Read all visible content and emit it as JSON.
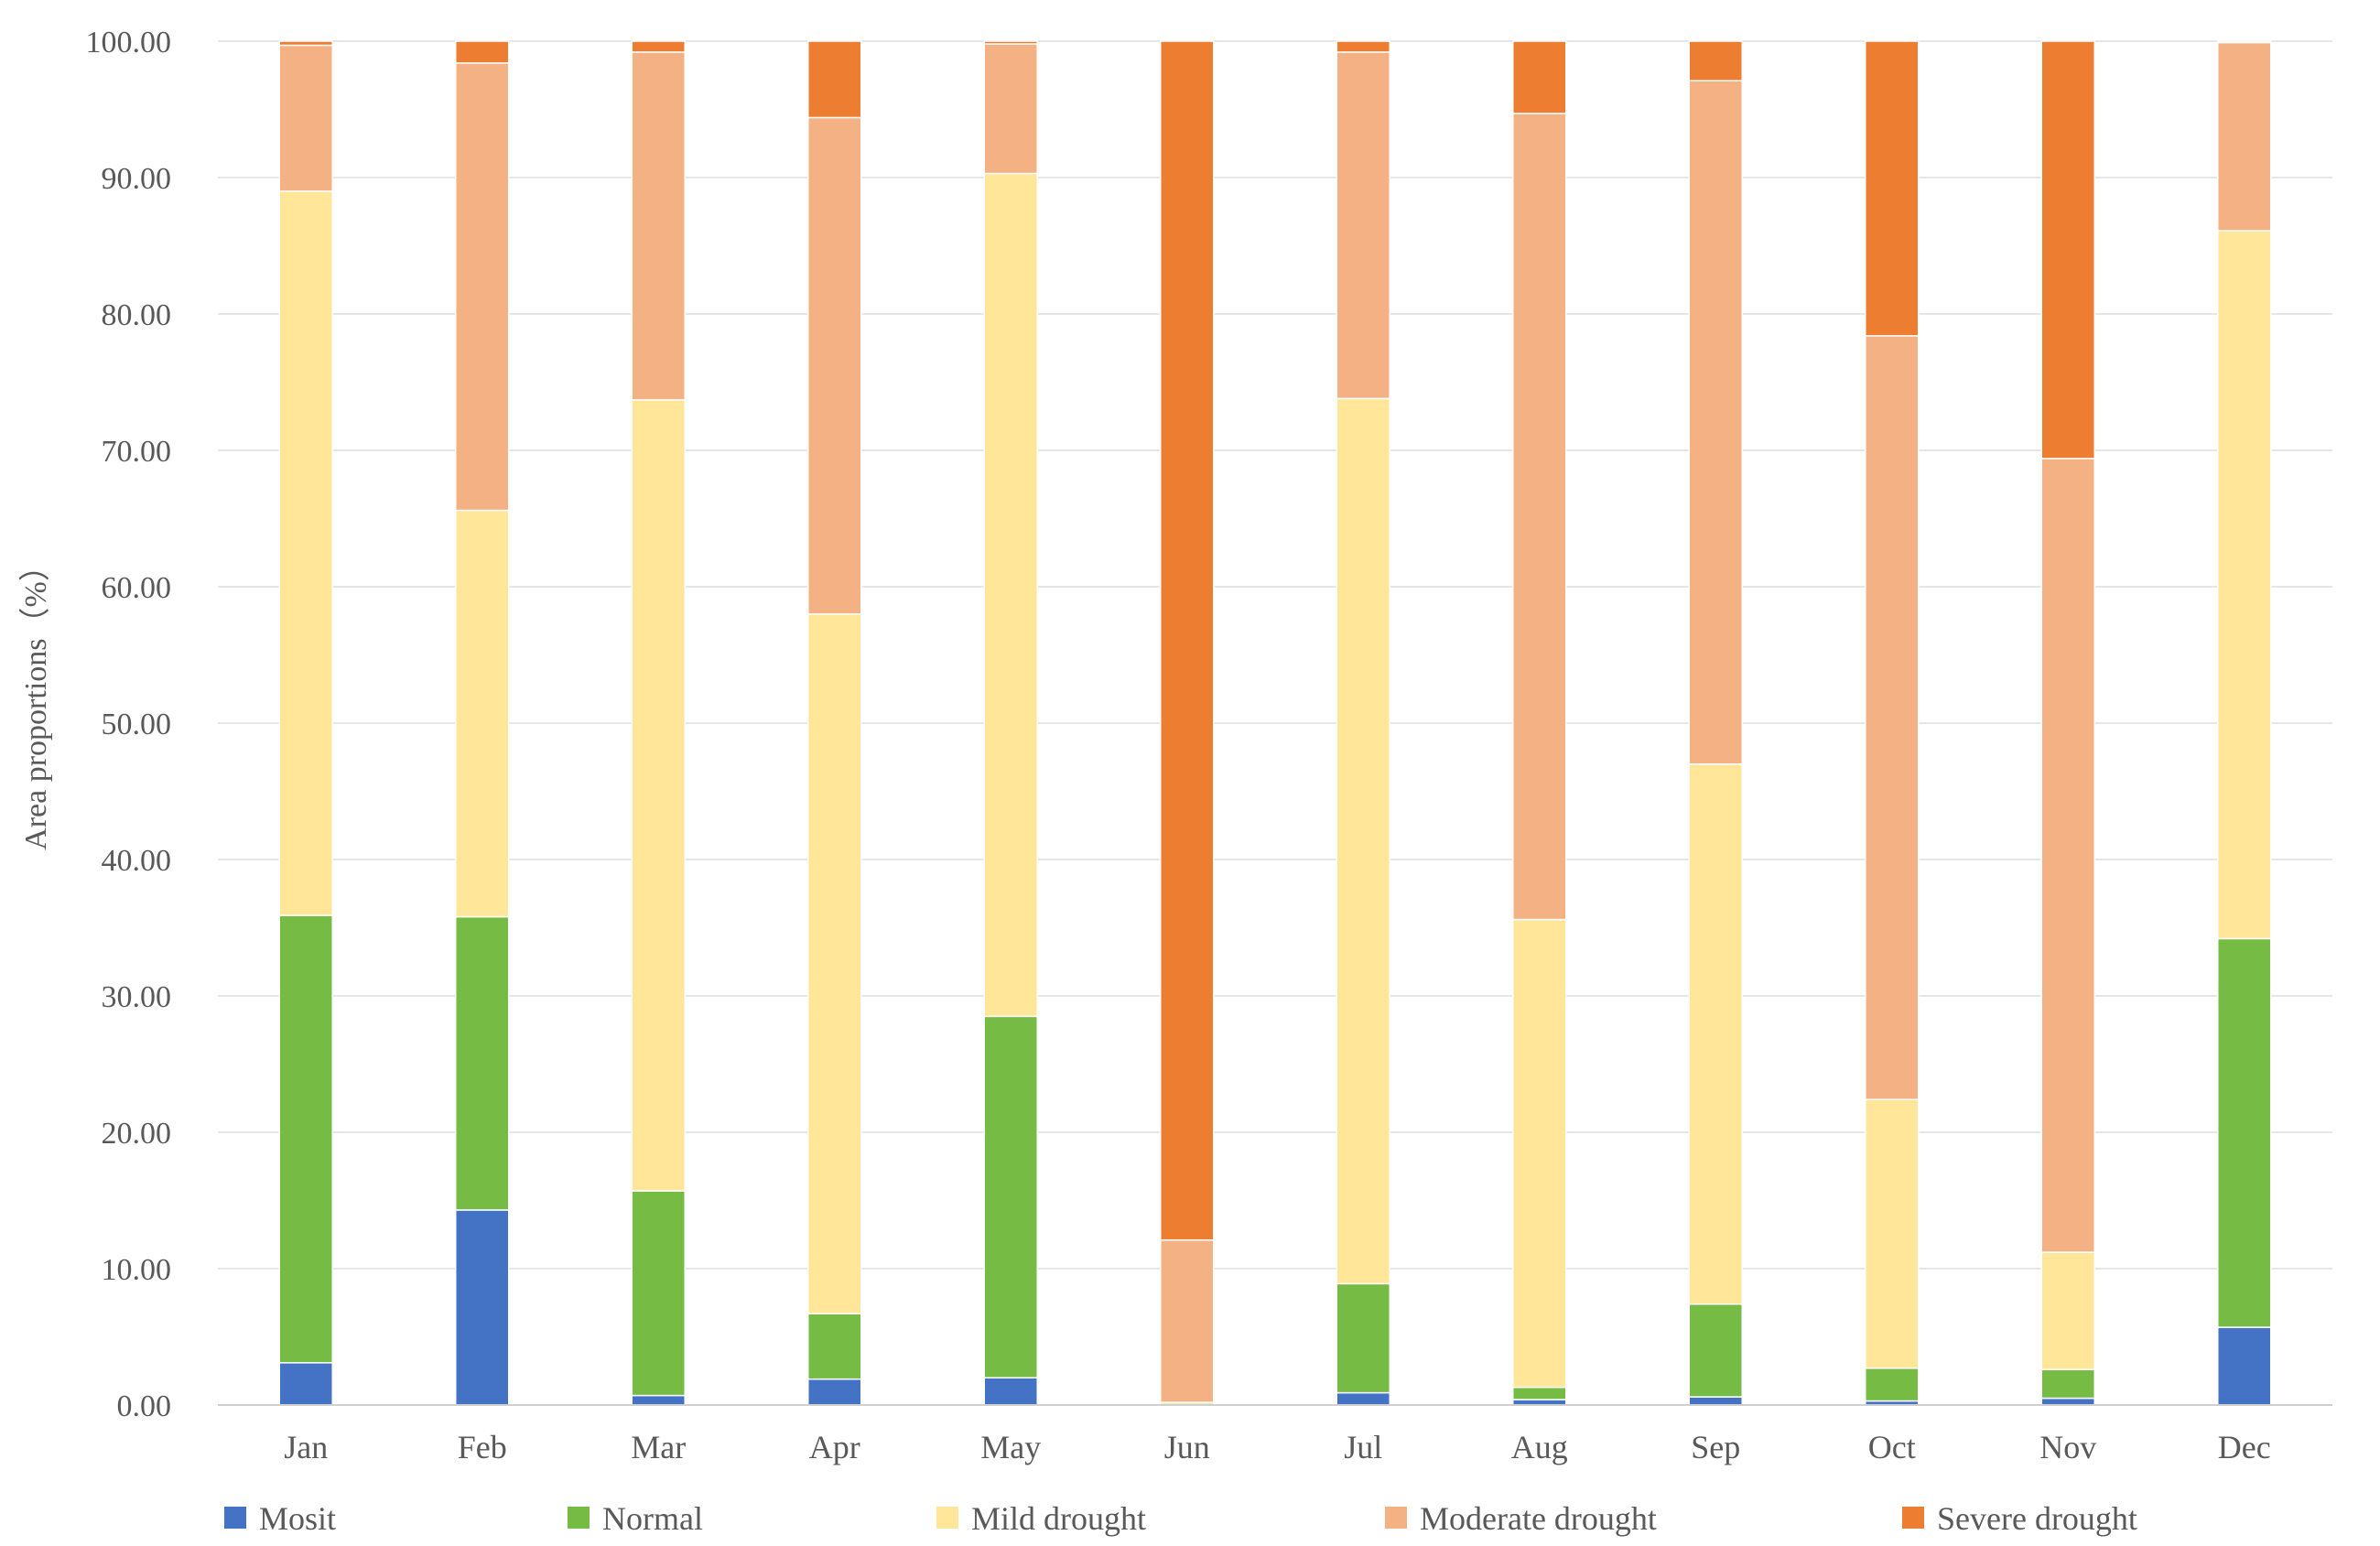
{
  "chart_data": {
    "type": "bar",
    "stacked": true,
    "ylabel": "Area proportions（%）",
    "xlabel": "",
    "ylim": [
      0,
      100
    ],
    "yticks": [
      "0.00",
      "10.00",
      "20.00",
      "30.00",
      "40.00",
      "50.00",
      "60.00",
      "70.00",
      "80.00",
      "90.00",
      "100.00"
    ],
    "grid": true,
    "legend_position": "bottom",
    "categories": [
      "Jan",
      "Feb",
      "Mar",
      "Apr",
      "May",
      "Jun",
      "Jul",
      "Aug",
      "Sep",
      "Oct",
      "Nov",
      "Dec"
    ],
    "series": [
      {
        "name": "Mosit",
        "color": "#4472C4",
        "values": [
          3.1,
          14.3,
          0.7,
          1.9,
          2.0,
          0.0,
          0.9,
          0.4,
          0.6,
          0.3,
          0.5,
          5.7
        ]
      },
      {
        "name": "Normal",
        "color": "#76BC44",
        "values": [
          32.8,
          21.5,
          15.0,
          4.8,
          26.5,
          0.0,
          8.0,
          0.9,
          6.8,
          2.4,
          2.1,
          28.5
        ]
      },
      {
        "name": "Mild drought",
        "color": "#FFE699",
        "values": [
          53.1,
          29.8,
          58.0,
          51.3,
          61.8,
          0.2,
          64.9,
          34.3,
          39.6,
          19.7,
          8.6,
          51.9
        ]
      },
      {
        "name": "Moderate drought",
        "color": "#F4B183",
        "values": [
          10.7,
          32.8,
          25.5,
          36.4,
          9.5,
          11.9,
          25.4,
          59.1,
          50.1,
          56.0,
          58.2,
          13.8
        ]
      },
      {
        "name": "Severe drought",
        "color": "#ED7D31",
        "values": [
          0.3,
          1.6,
          0.8,
          5.6,
          0.2,
          87.9,
          0.8,
          5.3,
          2.9,
          21.6,
          30.6,
          0.1
        ]
      }
    ]
  }
}
